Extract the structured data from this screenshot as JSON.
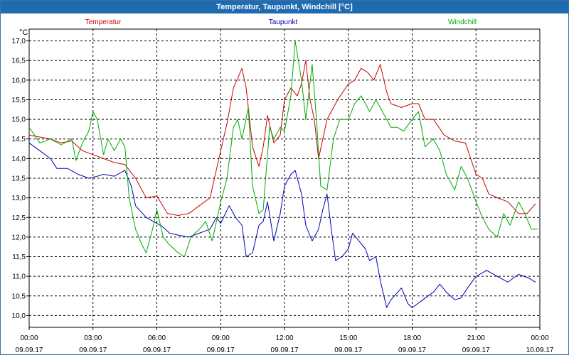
{
  "window": {
    "title": "Temperatur, Taupunkt, Windchill [°C]"
  },
  "chart_data": {
    "type": "line",
    "title": "Temperatur, Taupunkt, Windchill [°C]",
    "ylabel": "°C",
    "xlabel": "",
    "ylim": [
      9.7,
      17.3
    ],
    "xlim": [
      0,
      24
    ],
    "grid": true,
    "legend_position": "top",
    "y_ticks": [
      "17,0",
      "16,5",
      "16,0",
      "15,5",
      "15,0",
      "14,5",
      "14,0",
      "13,5",
      "13,0",
      "12,5",
      "12,0",
      "11,5",
      "11,0",
      "10,5",
      "10,0"
    ],
    "x_ticks": [
      {
        "time": "00:00",
        "date": "09.09.17"
      },
      {
        "time": "03:00",
        "date": "09.09.17"
      },
      {
        "time": "06:00",
        "date": "09.09.17"
      },
      {
        "time": "09:00",
        "date": "09.09.17"
      },
      {
        "time": "12:00",
        "date": "09.09.17"
      },
      {
        "time": "15:00",
        "date": "09.09.17"
      },
      {
        "time": "18:00",
        "date": "09.09.17"
      },
      {
        "time": "21:00",
        "date": "09.09.17"
      },
      {
        "time": "00:00",
        "date": "10.09.17"
      }
    ],
    "series": [
      {
        "name": "Temperatur",
        "color": "#cc0000",
        "points": [
          [
            0.0,
            14.6
          ],
          [
            0.5,
            14.55
          ],
          [
            1.0,
            14.5
          ],
          [
            1.5,
            14.4
          ],
          [
            2.0,
            14.45
          ],
          [
            2.5,
            14.2
          ],
          [
            3.0,
            14.1
          ],
          [
            3.5,
            14.0
          ],
          [
            4.0,
            13.9
          ],
          [
            4.5,
            13.85
          ],
          [
            5.0,
            13.5
          ],
          [
            5.5,
            13.0
          ],
          [
            6.0,
            13.05
          ],
          [
            6.5,
            12.6
          ],
          [
            7.0,
            12.55
          ],
          [
            7.5,
            12.6
          ],
          [
            8.0,
            12.8
          ],
          [
            8.5,
            13.0
          ],
          [
            9.0,
            14.2
          ],
          [
            9.3,
            14.9
          ],
          [
            9.6,
            15.8
          ],
          [
            10.0,
            16.3
          ],
          [
            10.2,
            15.8
          ],
          [
            10.5,
            14.3
          ],
          [
            10.8,
            13.8
          ],
          [
            11.0,
            14.3
          ],
          [
            11.2,
            15.1
          ],
          [
            11.5,
            14.4
          ],
          [
            11.8,
            14.6
          ],
          [
            12.0,
            15.5
          ],
          [
            12.3,
            15.8
          ],
          [
            12.6,
            15.6
          ],
          [
            12.8,
            15.9
          ],
          [
            13.0,
            16.5
          ],
          [
            13.2,
            15.5
          ],
          [
            13.4,
            15.0
          ],
          [
            13.6,
            14.0
          ],
          [
            14.0,
            15.0
          ],
          [
            14.5,
            15.5
          ],
          [
            15.0,
            15.9
          ],
          [
            15.3,
            16.0
          ],
          [
            15.6,
            16.3
          ],
          [
            15.9,
            16.2
          ],
          [
            16.2,
            16.0
          ],
          [
            16.5,
            16.4
          ],
          [
            16.8,
            15.7
          ],
          [
            17.0,
            15.4
          ],
          [
            17.5,
            15.3
          ],
          [
            18.0,
            15.4
          ],
          [
            18.3,
            15.4
          ],
          [
            18.6,
            15.0
          ],
          [
            19.0,
            15.0
          ],
          [
            19.5,
            14.6
          ],
          [
            20.0,
            14.45
          ],
          [
            20.5,
            14.4
          ],
          [
            21.0,
            13.6
          ],
          [
            21.3,
            13.5
          ],
          [
            21.6,
            13.1
          ],
          [
            22.0,
            13.0
          ],
          [
            22.5,
            12.9
          ],
          [
            23.0,
            12.6
          ],
          [
            23.4,
            12.6
          ],
          [
            23.8,
            12.85
          ]
        ]
      },
      {
        "name": "Taupunkt",
        "color": "#0000bb",
        "points": [
          [
            0.0,
            14.4
          ],
          [
            0.5,
            14.2
          ],
          [
            1.0,
            14.0
          ],
          [
            1.3,
            13.75
          ],
          [
            1.8,
            13.75
          ],
          [
            2.3,
            13.6
          ],
          [
            2.8,
            13.5
          ],
          [
            3.2,
            13.55
          ],
          [
            3.5,
            13.6
          ],
          [
            4.0,
            13.55
          ],
          [
            4.5,
            13.7
          ],
          [
            4.8,
            13.3
          ],
          [
            5.0,
            12.8
          ],
          [
            5.5,
            12.5
          ],
          [
            6.0,
            12.35
          ],
          [
            6.3,
            12.25
          ],
          [
            6.6,
            12.1
          ],
          [
            7.0,
            12.05
          ],
          [
            7.5,
            12.0
          ],
          [
            8.0,
            12.1
          ],
          [
            8.5,
            12.2
          ],
          [
            8.8,
            12.5
          ],
          [
            9.0,
            12.35
          ],
          [
            9.4,
            12.8
          ],
          [
            9.7,
            12.5
          ],
          [
            10.0,
            12.3
          ],
          [
            10.2,
            11.5
          ],
          [
            10.5,
            11.6
          ],
          [
            10.8,
            12.3
          ],
          [
            11.0,
            12.4
          ],
          [
            11.2,
            12.9
          ],
          [
            11.5,
            11.9
          ],
          [
            11.8,
            12.6
          ],
          [
            12.0,
            13.3
          ],
          [
            12.3,
            13.6
          ],
          [
            12.5,
            13.7
          ],
          [
            12.8,
            13.1
          ],
          [
            13.0,
            12.3
          ],
          [
            13.3,
            11.9
          ],
          [
            13.6,
            12.2
          ],
          [
            13.8,
            12.7
          ],
          [
            14.0,
            13.1
          ],
          [
            14.2,
            12.2
          ],
          [
            14.4,
            11.4
          ],
          [
            14.7,
            11.5
          ],
          [
            15.0,
            11.7
          ],
          [
            15.2,
            12.1
          ],
          [
            15.5,
            11.9
          ],
          [
            15.8,
            11.7
          ],
          [
            16.0,
            11.4
          ],
          [
            16.3,
            11.5
          ],
          [
            16.5,
            10.9
          ],
          [
            16.8,
            10.2
          ],
          [
            17.0,
            10.4
          ],
          [
            17.5,
            10.7
          ],
          [
            17.8,
            10.3
          ],
          [
            18.0,
            10.2
          ],
          [
            18.5,
            10.4
          ],
          [
            19.0,
            10.6
          ],
          [
            19.3,
            10.8
          ],
          [
            19.6,
            10.6
          ],
          [
            20.0,
            10.4
          ],
          [
            20.3,
            10.45
          ],
          [
            20.6,
            10.7
          ],
          [
            21.0,
            11.0
          ],
          [
            21.5,
            11.15
          ],
          [
            22.0,
            11.0
          ],
          [
            22.5,
            10.85
          ],
          [
            23.0,
            11.05
          ],
          [
            23.5,
            10.95
          ],
          [
            23.8,
            10.85
          ]
        ]
      },
      {
        "name": "Windchill",
        "color": "#00aa00",
        "points": [
          [
            0.0,
            14.8
          ],
          [
            0.5,
            14.4
          ],
          [
            1.0,
            14.5
          ],
          [
            1.5,
            14.35
          ],
          [
            2.0,
            14.5
          ],
          [
            2.2,
            13.95
          ],
          [
            2.5,
            14.4
          ],
          [
            2.8,
            14.7
          ],
          [
            3.0,
            15.2
          ],
          [
            3.2,
            15.0
          ],
          [
            3.5,
            14.1
          ],
          [
            3.7,
            14.5
          ],
          [
            4.0,
            14.2
          ],
          [
            4.3,
            14.5
          ],
          [
            4.5,
            14.3
          ],
          [
            4.7,
            13.0
          ],
          [
            5.0,
            12.2
          ],
          [
            5.3,
            11.8
          ],
          [
            5.5,
            11.6
          ],
          [
            5.8,
            12.2
          ],
          [
            6.0,
            12.7
          ],
          [
            6.3,
            12.0
          ],
          [
            6.6,
            11.8
          ],
          [
            7.0,
            11.6
          ],
          [
            7.3,
            11.5
          ],
          [
            7.6,
            12.0
          ],
          [
            8.0,
            12.2
          ],
          [
            8.3,
            12.4
          ],
          [
            8.6,
            11.9
          ],
          [
            9.0,
            12.9
          ],
          [
            9.3,
            13.5
          ],
          [
            9.6,
            14.8
          ],
          [
            9.8,
            15.0
          ],
          [
            10.0,
            14.5
          ],
          [
            10.3,
            15.3
          ],
          [
            10.5,
            13.3
          ],
          [
            10.8,
            12.6
          ],
          [
            11.0,
            12.7
          ],
          [
            11.3,
            14.8
          ],
          [
            11.5,
            14.5
          ],
          [
            11.8,
            14.8
          ],
          [
            12.0,
            14.7
          ],
          [
            12.3,
            15.6
          ],
          [
            12.5,
            17.0
          ],
          [
            12.8,
            16.0
          ],
          [
            13.0,
            15.0
          ],
          [
            13.3,
            16.4
          ],
          [
            13.5,
            15.0
          ],
          [
            13.7,
            13.3
          ],
          [
            14.0,
            13.2
          ],
          [
            14.3,
            14.5
          ],
          [
            14.6,
            15.0
          ],
          [
            15.0,
            15.0
          ],
          [
            15.3,
            15.4
          ],
          [
            15.6,
            15.6
          ],
          [
            16.0,
            15.2
          ],
          [
            16.3,
            15.5
          ],
          [
            16.6,
            15.2
          ],
          [
            17.0,
            14.8
          ],
          [
            17.3,
            14.8
          ],
          [
            17.6,
            14.7
          ],
          [
            18.0,
            15.0
          ],
          [
            18.3,
            15.2
          ],
          [
            18.6,
            14.3
          ],
          [
            19.0,
            14.5
          ],
          [
            19.3,
            14.2
          ],
          [
            19.6,
            13.6
          ],
          [
            20.0,
            13.2
          ],
          [
            20.3,
            13.8
          ],
          [
            20.6,
            13.5
          ],
          [
            21.0,
            12.9
          ],
          [
            21.3,
            12.5
          ],
          [
            21.6,
            12.2
          ],
          [
            22.0,
            12.0
          ],
          [
            22.3,
            12.6
          ],
          [
            22.6,
            12.3
          ],
          [
            23.0,
            12.9
          ],
          [
            23.3,
            12.6
          ],
          [
            23.6,
            12.2
          ],
          [
            23.9,
            12.2
          ]
        ]
      }
    ]
  }
}
